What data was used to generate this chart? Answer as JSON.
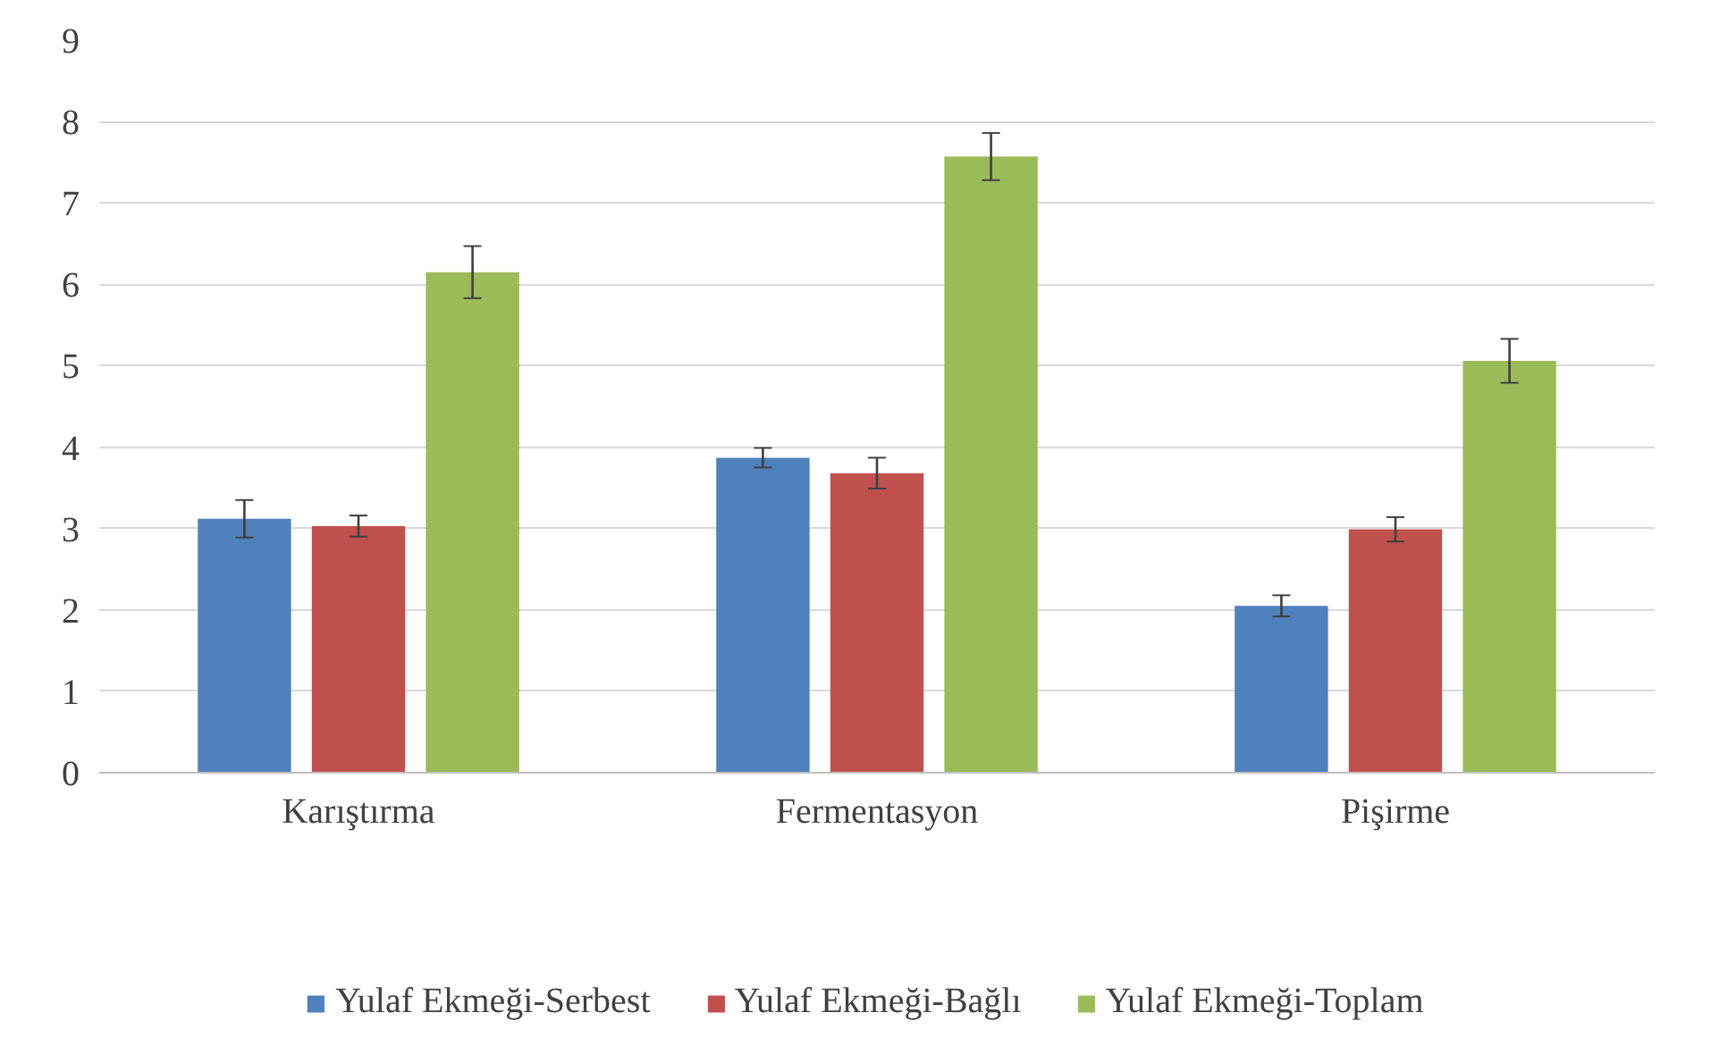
{
  "chart_data": {
    "type": "bar",
    "categories": [
      "Karıştırma",
      "Fermentasyon",
      "Pişirme"
    ],
    "series": [
      {
        "name": "Yulaf Ekmeği-Serbest",
        "color": "#4f81bd",
        "values": [
          3.12,
          3.87,
          2.05
        ],
        "errors": [
          0.23,
          0.12,
          0.13
        ]
      },
      {
        "name": "Yulaf Ekmeği-Bağlı",
        "color": "#c0504d",
        "values": [
          3.03,
          3.68,
          2.99
        ],
        "errors": [
          0.13,
          0.19,
          0.15
        ]
      },
      {
        "name": "Yulaf Ekmeği-Toplam",
        "color": "#9bbb59",
        "values": [
          6.15,
          7.57,
          5.06
        ],
        "errors": [
          0.32,
          0.29,
          0.27
        ]
      }
    ],
    "ylim": [
      0,
      9
    ],
    "yticks": [
      0,
      1,
      2,
      3,
      4,
      5,
      6,
      7,
      8,
      9
    ],
    "grid": "y",
    "legend": "bottom"
  }
}
